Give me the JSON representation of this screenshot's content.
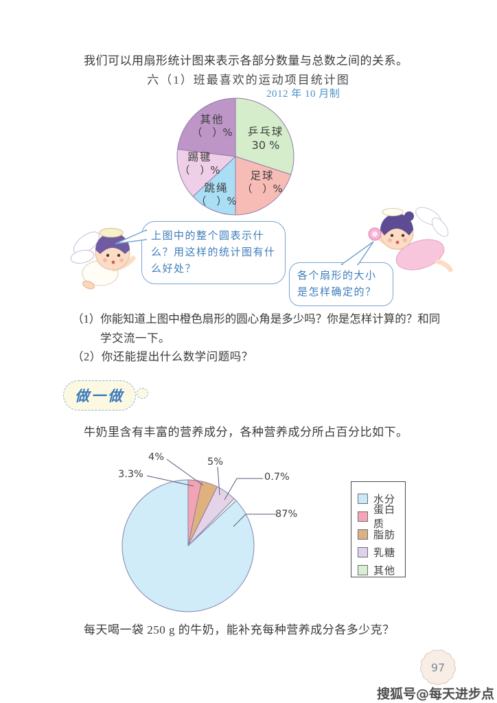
{
  "page": {
    "intro": "我们可以用扇形统计图来表示各部分数量与总数之间的关系。",
    "question1_line1": "（1）你能知道上图中橙色扇形的圆心角是多少吗？你是怎样计算的？和同",
    "question1_line2": "学交流一下。",
    "question2": "（2）你还能提出什么数学问题吗？",
    "do_badge_label": "做一做",
    "milk_intro": "牛奶里含有丰富的营养成分，各种营养成分所占百分比如下。",
    "milk_question": "每天喝一袋 250 g 的牛奶，能补充每种营养成分各多少克？",
    "page_number": "97",
    "watermark": "搜狐号@每天进步点点"
  },
  "bubbles": {
    "left": "上图中的整个圆表示什么？用这样的统计图有什么好处？",
    "right": "各个扇形的大小是怎样确定的？"
  },
  "chart_data": [
    {
      "type": "pie",
      "title": "六（1）班最喜欢的运动项目统计图",
      "subtitle": "2012 年 10 月制",
      "start": "top",
      "direction": "clockwise",
      "stroke": "#8f7cae",
      "slices": [
        {
          "label": "乒乓球",
          "value_label": "30 %",
          "percent": 30,
          "color": "#d5edca"
        },
        {
          "label": "足球",
          "value_label": "（　）%",
          "percent": 20,
          "color": "#f8bcb6"
        },
        {
          "label": "跳绳",
          "value_label": "（　）%",
          "percent": 13,
          "color": "#a9def5"
        },
        {
          "label": "踢毽",
          "value_label": "（　）%",
          "percent": 14,
          "color": "#efcfe7"
        },
        {
          "label": "其他",
          "value_label": "（　）%",
          "percent": 23,
          "color": "#bd95c6"
        }
      ]
    },
    {
      "type": "pie",
      "title": "",
      "start": "top",
      "direction": "clockwise",
      "stroke": "#8383ad",
      "legend_position": "right",
      "slices": [
        {
          "label": "蛋白质",
          "percent": 3.3,
          "color": "#f4a3b2"
        },
        {
          "label": "脂肪",
          "percent": 4,
          "color": "#e0b17d"
        },
        {
          "label": "乳糖",
          "percent": 5,
          "color": "#e5d3e7"
        },
        {
          "label": "其他",
          "percent": 0.7,
          "color": "#eef6e9"
        },
        {
          "label": "水分",
          "percent": 87,
          "color": "#cfecf8"
        }
      ],
      "callouts": [
        {
          "text": "3.3%"
        },
        {
          "text": "4%"
        },
        {
          "text": "5%"
        },
        {
          "text": "0.7%"
        },
        {
          "text": "87%"
        }
      ],
      "legend": [
        {
          "label": "水分",
          "color": "#c9e9f7"
        },
        {
          "label": "蛋白质",
          "color": "#f4a6b8"
        },
        {
          "label": "脂肪",
          "color": "#dcb183"
        },
        {
          "label": "乳糖",
          "color": "#ded1ed"
        },
        {
          "label": "其他",
          "color": "#d9eed3"
        }
      ]
    }
  ]
}
